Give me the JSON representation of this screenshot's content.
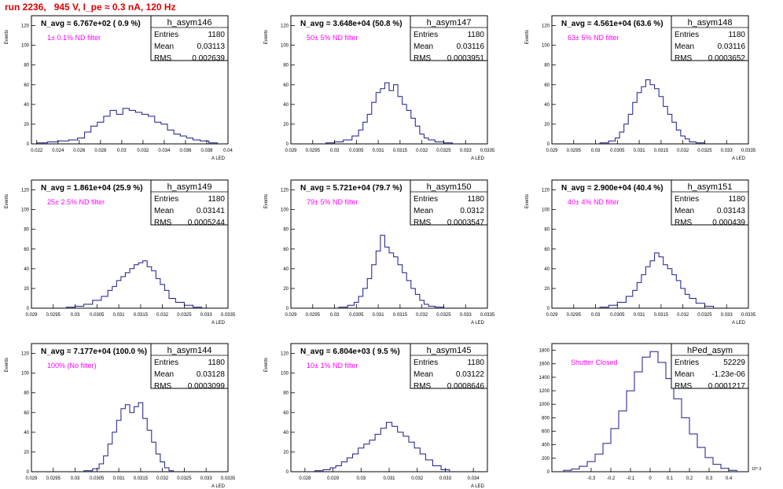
{
  "run_title": "run 2236,   945 V, I_pe ≈ 0.3 nA, 120 Hz",
  "colors": {
    "hist": "#1a1a8c",
    "annot": "#ff00ff",
    "title": "#e00000",
    "text": "#000000"
  },
  "stats_labels": {
    "entries": "Entries",
    "mean": "Mean",
    "rms": "RMS"
  },
  "chart_data": [
    {
      "type": "bar",
      "name": "h_asym146",
      "navg": "N_avg = 6.767e+02 ( 0.9 %)",
      "annotation": "1± 0.1% ND filter",
      "entries": "1180",
      "mean": "0.03113",
      "rms": "0.002639",
      "ylabel": "Events",
      "xlabel": "A LED",
      "xlim": [
        0.0215,
        0.04
      ],
      "ylim": [
        0,
        130
      ],
      "xticks": [
        "0.022",
        "0.024",
        "0.026",
        "0.028",
        "0.03",
        "0.032",
        "0.034",
        "0.036",
        "0.038",
        "0.04"
      ],
      "yticks": [
        "0",
        "20",
        "40",
        "60",
        "80",
        "100",
        "120"
      ],
      "x": [
        0.0225,
        0.0235,
        0.0245,
        0.0255,
        0.0262,
        0.0268,
        0.0274,
        0.028,
        0.0286,
        0.0292,
        0.0298,
        0.0304,
        0.031,
        0.0316,
        0.0322,
        0.0328,
        0.0334,
        0.034,
        0.0346,
        0.0352,
        0.0358,
        0.0364,
        0.037,
        0.0378,
        0.0386
      ],
      "values": [
        1,
        2,
        3,
        4,
        6,
        12,
        18,
        22,
        28,
        34,
        30,
        36,
        34,
        32,
        30,
        28,
        22,
        20,
        14,
        10,
        8,
        6,
        4,
        3,
        1
      ]
    },
    {
      "type": "bar",
      "name": "h_asym147",
      "navg": "N_avg = 3.648e+04 (50.8 %)",
      "annotation": "50± 5% ND filter",
      "entries": "1180",
      "mean": "0.03116",
      "rms": "0.0003951",
      "ylabel": "Events",
      "xlabel": "A LED",
      "xlim": [
        0.029,
        0.0335
      ],
      "ylim": [
        0,
        130
      ],
      "xticks": [
        "0.029",
        "0.0295",
        "0.03",
        "0.0305",
        "0.031",
        "0.0315",
        "0.032",
        "0.0325",
        "0.033",
        "0.0335"
      ],
      "yticks": [
        "0",
        "20",
        "40",
        "60",
        "80",
        "100",
        "120"
      ],
      "x": [
        0.0299,
        0.0301,
        0.0303,
        0.0305,
        0.0306,
        0.0307,
        0.0308,
        0.0309,
        0.031,
        0.0311,
        0.0312,
        0.0313,
        0.0314,
        0.0315,
        0.0316,
        0.0317,
        0.0318,
        0.0319,
        0.032,
        0.0321,
        0.0322,
        0.0324,
        0.0326
      ],
      "values": [
        1,
        2,
        4,
        8,
        14,
        22,
        30,
        42,
        52,
        56,
        62,
        54,
        60,
        48,
        40,
        34,
        26,
        18,
        10,
        6,
        4,
        2,
        1
      ]
    },
    {
      "type": "bar",
      "name": "h_asym148",
      "navg": "N_avg = 4.561e+04 (63.6 %)",
      "annotation": "63± 5% ND filter",
      "entries": "1180",
      "mean": "0.03116",
      "rms": "0.0003652",
      "ylabel": "Events",
      "xlabel": "A LED",
      "xlim": [
        0.029,
        0.0335
      ],
      "ylim": [
        0,
        130
      ],
      "xticks": [
        "0.029",
        "0.0295",
        "0.03",
        "0.0305",
        "0.031",
        "0.0315",
        "0.032",
        "0.0325",
        "0.033",
        "0.0335"
      ],
      "yticks": [
        "0",
        "20",
        "40",
        "60",
        "80",
        "100",
        "120"
      ],
      "x": [
        0.0302,
        0.0304,
        0.0305,
        0.0306,
        0.0307,
        0.0308,
        0.0309,
        0.031,
        0.0311,
        0.0312,
        0.0313,
        0.0314,
        0.0315,
        0.0316,
        0.0317,
        0.0318,
        0.0319,
        0.032,
        0.0321,
        0.0322,
        0.0324
      ],
      "values": [
        1,
        3,
        6,
        12,
        20,
        30,
        42,
        52,
        58,
        65,
        60,
        56,
        48,
        38,
        30,
        22,
        14,
        8,
        5,
        2,
        1
      ]
    },
    {
      "type": "bar",
      "name": "h_asym149",
      "navg": "N_avg = 1.861e+04 (25.9 %)",
      "annotation": "25± 2.5% ND filter",
      "entries": "1180",
      "mean": "0.03141",
      "rms": "0.0005244",
      "ylabel": "Events",
      "xlabel": "A LED",
      "xlim": [
        0.029,
        0.0335
      ],
      "ylim": [
        0,
        130
      ],
      "xticks": [
        "0.029",
        "0.0295",
        "0.03",
        "0.0305",
        "0.031",
        "0.0315",
        "0.032",
        "0.0325",
        "0.033",
        "0.0335"
      ],
      "yticks": [
        "0",
        "20",
        "40",
        "60",
        "80",
        "100",
        "120"
      ],
      "x": [
        0.0299,
        0.0301,
        0.0303,
        0.0305,
        0.0307,
        0.0308,
        0.0309,
        0.031,
        0.0311,
        0.0312,
        0.0313,
        0.0314,
        0.0315,
        0.0316,
        0.0317,
        0.0318,
        0.0319,
        0.032,
        0.0321,
        0.0322,
        0.0324,
        0.0326,
        0.0328
      ],
      "values": [
        1,
        2,
        4,
        8,
        12,
        18,
        22,
        28,
        32,
        36,
        40,
        44,
        46,
        48,
        42,
        38,
        30,
        24,
        18,
        10,
        6,
        3,
        1
      ]
    },
    {
      "type": "bar",
      "name": "h_asym150",
      "navg": "N_avg = 5.721e+04 (79.7 %)",
      "annotation": "79± 5% ND filter",
      "entries": "1180",
      "mean": "0.0312",
      "rms": "0.0003547",
      "ylabel": "Events",
      "xlabel": "A LED",
      "xlim": [
        0.029,
        0.0335
      ],
      "ylim": [
        0,
        130
      ],
      "xticks": [
        "0.029",
        "0.0295",
        "0.03",
        "0.0305",
        "0.031",
        "0.0315",
        "0.032",
        "0.0325",
        "0.033",
        "0.0335"
      ],
      "yticks": [
        "0",
        "20",
        "40",
        "60",
        "80",
        "100",
        "120"
      ],
      "x": [
        0.0302,
        0.0304,
        0.0305,
        0.0306,
        0.0307,
        0.0308,
        0.0309,
        0.031,
        0.0311,
        0.0312,
        0.0313,
        0.0314,
        0.0315,
        0.0316,
        0.0317,
        0.0318,
        0.0319,
        0.032,
        0.0321,
        0.0322,
        0.0324
      ],
      "values": [
        1,
        3,
        6,
        12,
        20,
        30,
        44,
        58,
        74,
        62,
        56,
        52,
        44,
        36,
        28,
        20,
        14,
        8,
        4,
        2,
        1
      ]
    },
    {
      "type": "bar",
      "name": "h_asym151",
      "navg": "N_avg = 2.900e+04 (40.4 %)",
      "annotation": "40± 4% ND filter",
      "entries": "1180",
      "mean": "0.03143",
      "rms": "0.000439",
      "ylabel": "Events",
      "xlabel": "A LED",
      "xlim": [
        0.029,
        0.0335
      ],
      "ylim": [
        0,
        130
      ],
      "xticks": [
        "0.029",
        "0.0295",
        "0.03",
        "0.0305",
        "0.031",
        "0.0315",
        "0.032",
        "0.0325",
        "0.033",
        "0.0335"
      ],
      "yticks": [
        "0",
        "20",
        "40",
        "60",
        "80",
        "100",
        "120"
      ],
      "x": [
        0.0302,
        0.0304,
        0.0306,
        0.0308,
        0.0309,
        0.031,
        0.0311,
        0.0312,
        0.0313,
        0.0314,
        0.0315,
        0.0316,
        0.0317,
        0.0318,
        0.0319,
        0.032,
        0.0321,
        0.0322,
        0.0324,
        0.0326
      ],
      "values": [
        1,
        3,
        6,
        12,
        18,
        26,
        34,
        42,
        48,
        56,
        52,
        44,
        40,
        34,
        28,
        20,
        14,
        10,
        5,
        2
      ]
    },
    {
      "type": "bar",
      "name": "h_asym144",
      "navg": "N_avg = 7.177e+04 (100.0 %)",
      "annotation": "100% (No filter)",
      "entries": "1180",
      "mean": "0.03128",
      "rms": "0.0003099",
      "ylabel": "Events",
      "xlabel": "A LED",
      "xlim": [
        0.029,
        0.0335
      ],
      "ylim": [
        0,
        130
      ],
      "xticks": [
        "0.029",
        "0.0295",
        "0.03",
        "0.0305",
        "0.031",
        "0.0315",
        "0.032",
        "0.0325",
        "0.033",
        "0.0335"
      ],
      "yticks": [
        "0",
        "20",
        "40",
        "60",
        "80",
        "100",
        "120"
      ],
      "x": [
        0.0303,
        0.0305,
        0.0306,
        0.0307,
        0.0308,
        0.0309,
        0.031,
        0.0311,
        0.0312,
        0.0313,
        0.0314,
        0.0315,
        0.0316,
        0.0317,
        0.0318,
        0.0319,
        0.032,
        0.0321,
        0.0322
      ],
      "values": [
        1,
        3,
        8,
        16,
        28,
        40,
        52,
        64,
        68,
        60,
        66,
        70,
        54,
        42,
        30,
        18,
        10,
        4,
        1
      ]
    },
    {
      "type": "bar",
      "name": "h_asym145",
      "navg": "N_avg = 6.804e+03 ( 9.5 %)",
      "annotation": "10± 1% ND filter",
      "entries": "1180",
      "mean": "0.03122",
      "rms": "0.0008646",
      "ylabel": "Events",
      "xlabel": "A LED",
      "xlim": [
        0.0275,
        0.0345
      ],
      "ylim": [
        0,
        130
      ],
      "xticks": [
        "0.028",
        "0.029",
        "0.03",
        "0.031",
        "0.032",
        "0.033",
        "0.034"
      ],
      "yticks": [
        "0",
        "20",
        "40",
        "60",
        "80",
        "100",
        "120"
      ],
      "x": [
        0.0285,
        0.0288,
        0.029,
        0.0292,
        0.0294,
        0.0296,
        0.0298,
        0.03,
        0.0302,
        0.0304,
        0.0306,
        0.0308,
        0.031,
        0.0312,
        0.0314,
        0.0316,
        0.0318,
        0.032,
        0.0322,
        0.0324,
        0.0327,
        0.033
      ],
      "values": [
        1,
        2,
        4,
        6,
        10,
        14,
        18,
        24,
        28,
        32,
        38,
        44,
        50,
        46,
        40,
        36,
        30,
        24,
        18,
        12,
        6,
        2
      ]
    },
    {
      "type": "bar",
      "name": "hPed_asym",
      "navg": "",
      "annotation": "Shutter Closed",
      "entries": "52229",
      "mean": "-1.23e-06",
      "rms": "0.0001217",
      "ylabel": "",
      "xlabel": "",
      "xlim": [
        -0.5,
        0.5
      ],
      "ylim": [
        0,
        1900
      ],
      "xticks": [
        "-0.3",
        "-0.2",
        "-0.1",
        "0",
        "0.1",
        "0.2",
        "0.3",
        "0.4"
      ],
      "yticks": [
        "0",
        "200",
        "400",
        "600",
        "800",
        "1000",
        "1200",
        "1400",
        "1600",
        "1800"
      ],
      "xunit": "10^-3",
      "x": [
        -0.42,
        -0.38,
        -0.34,
        -0.3,
        -0.26,
        -0.22,
        -0.18,
        -0.14,
        -0.1,
        -0.06,
        -0.02,
        0.02,
        0.06,
        0.1,
        0.14,
        0.18,
        0.22,
        0.26,
        0.3,
        0.34,
        0.38,
        0.42
      ],
      "values": [
        20,
        40,
        80,
        150,
        260,
        420,
        640,
        900,
        1200,
        1480,
        1700,
        1780,
        1620,
        1380,
        1080,
        800,
        560,
        360,
        210,
        110,
        50,
        20
      ]
    }
  ]
}
